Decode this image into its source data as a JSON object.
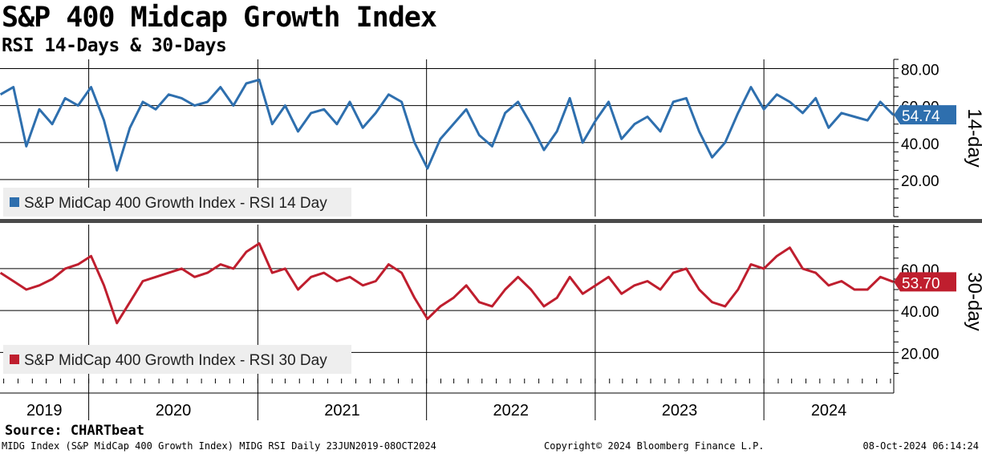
{
  "title": "S&P 400 Midcap Growth Index",
  "subtitle": "RSI 14-Days & 30-Days",
  "source": "Source: CHARTbeat",
  "footer": {
    "left": "MIDG Index (S&P MidCap 400 Growth Index) MIDG RSI  Daily 23JUN2019-08OCT2024",
    "center": "Copyright© 2024 Bloomberg Finance L.P.",
    "right": "08-Oct-2024 06:14:24"
  },
  "colors": {
    "rsi14": "#2e6fae",
    "rsi30": "#bf1e2e",
    "grid": "#000000",
    "legend_bg": "#eeeeee"
  },
  "chart_data": [
    {
      "type": "line",
      "panel": "top",
      "panel_label": "14-day",
      "ylim": [
        0,
        85
      ],
      "yticks": [
        20,
        40,
        60,
        80
      ],
      "ytick_labels": [
        "20.00",
        "40.00",
        "60.00",
        "80.00"
      ],
      "x_start": "2019-06-23",
      "x_end": "2024-10-08",
      "last_value_label": "54.74",
      "legend": "top-left",
      "series": [
        {
          "name": "S&P MidCap 400 Growth Index - RSI 14 Day",
          "color": "#2e6fae",
          "x": [
            "2019-06-24",
            "2019-07-22",
            "2019-08-19",
            "2019-09-16",
            "2019-10-14",
            "2019-11-11",
            "2019-12-09",
            "2020-01-06",
            "2020-02-03",
            "2020-03-02",
            "2020-03-30",
            "2020-04-27",
            "2020-05-25",
            "2020-06-22",
            "2020-07-20",
            "2020-08-17",
            "2020-09-14",
            "2020-10-12",
            "2020-11-09",
            "2020-12-07",
            "2021-01-04",
            "2021-02-01",
            "2021-03-01",
            "2021-03-29",
            "2021-04-26",
            "2021-05-24",
            "2021-06-21",
            "2021-07-19",
            "2021-08-16",
            "2021-09-13",
            "2021-10-11",
            "2021-11-08",
            "2021-12-06",
            "2022-01-03",
            "2022-01-31",
            "2022-02-28",
            "2022-03-28",
            "2022-04-25",
            "2022-05-23",
            "2022-06-20",
            "2022-07-18",
            "2022-08-15",
            "2022-09-12",
            "2022-10-10",
            "2022-11-07",
            "2022-12-05",
            "2023-01-02",
            "2023-01-30",
            "2023-02-27",
            "2023-03-27",
            "2023-04-24",
            "2023-05-22",
            "2023-06-19",
            "2023-07-17",
            "2023-08-14",
            "2023-09-11",
            "2023-10-09",
            "2023-11-06",
            "2023-12-04",
            "2024-01-01",
            "2024-01-29",
            "2024-02-26",
            "2024-03-25",
            "2024-04-22",
            "2024-05-20",
            "2024-06-17",
            "2024-07-15",
            "2024-08-12",
            "2024-09-09",
            "2024-10-07"
          ],
          "values": [
            66,
            70,
            38,
            58,
            50,
            64,
            60,
            70,
            52,
            25,
            48,
            62,
            58,
            66,
            64,
            60,
            62,
            70,
            60,
            72,
            74,
            50,
            60,
            46,
            56,
            58,
            50,
            62,
            48,
            56,
            66,
            62,
            40,
            26,
            42,
            50,
            58,
            44,
            38,
            56,
            62,
            50,
            36,
            46,
            64,
            40,
            52,
            62,
            42,
            50,
            54,
            46,
            62,
            64,
            46,
            32,
            40,
            56,
            70,
            58,
            66,
            62,
            56,
            64,
            48,
            56,
            54,
            52,
            62,
            55
          ]
        }
      ]
    },
    {
      "type": "line",
      "panel": "bottom",
      "panel_label": "30-day",
      "ylim": [
        7.5,
        81
      ],
      "yticks": [
        20,
        40,
        60
      ],
      "ytick_labels": [
        "20.00",
        "40.00",
        "60.00"
      ],
      "x_start": "2019-06-23",
      "x_end": "2024-10-08",
      "last_value_label": "53.70",
      "legend": "bottom-left",
      "series": [
        {
          "name": "S&P MidCap 400 Growth Index - RSI 30 Day",
          "color": "#bf1e2e",
          "x": [
            "2019-06-24",
            "2019-07-22",
            "2019-08-19",
            "2019-09-16",
            "2019-10-14",
            "2019-11-11",
            "2019-12-09",
            "2020-01-06",
            "2020-02-03",
            "2020-03-02",
            "2020-03-30",
            "2020-04-27",
            "2020-05-25",
            "2020-06-22",
            "2020-07-20",
            "2020-08-17",
            "2020-09-14",
            "2020-10-12",
            "2020-11-09",
            "2020-12-07",
            "2021-01-04",
            "2021-02-01",
            "2021-03-01",
            "2021-03-29",
            "2021-04-26",
            "2021-05-24",
            "2021-06-21",
            "2021-07-19",
            "2021-08-16",
            "2021-09-13",
            "2021-10-11",
            "2021-11-08",
            "2021-12-06",
            "2022-01-03",
            "2022-01-31",
            "2022-02-28",
            "2022-03-28",
            "2022-04-25",
            "2022-05-23",
            "2022-06-20",
            "2022-07-18",
            "2022-08-15",
            "2022-09-12",
            "2022-10-10",
            "2022-11-07",
            "2022-12-05",
            "2023-01-02",
            "2023-01-30",
            "2023-02-27",
            "2023-03-27",
            "2023-04-24",
            "2023-05-22",
            "2023-06-19",
            "2023-07-17",
            "2023-08-14",
            "2023-09-11",
            "2023-10-09",
            "2023-11-06",
            "2023-12-04",
            "2024-01-01",
            "2024-01-29",
            "2024-02-26",
            "2024-03-25",
            "2024-04-22",
            "2024-05-20",
            "2024-06-17",
            "2024-07-15",
            "2024-08-12",
            "2024-09-09",
            "2024-10-07"
          ],
          "values": [
            58,
            54,
            50,
            52,
            55,
            60,
            62,
            66,
            52,
            34,
            44,
            54,
            56,
            58,
            60,
            56,
            58,
            62,
            60,
            68,
            72,
            58,
            60,
            50,
            56,
            58,
            54,
            56,
            52,
            54,
            62,
            58,
            46,
            36,
            42,
            46,
            52,
            44,
            42,
            50,
            56,
            50,
            42,
            46,
            56,
            48,
            52,
            56,
            48,
            52,
            54,
            50,
            58,
            60,
            50,
            44,
            42,
            50,
            62,
            60,
            66,
            70,
            60,
            58,
            52,
            54,
            50,
            50,
            56,
            53.7
          ]
        }
      ]
    }
  ],
  "x_axis": {
    "year_labels": [
      "2019",
      "2020",
      "2021",
      "2022",
      "2023",
      "2024"
    ]
  }
}
